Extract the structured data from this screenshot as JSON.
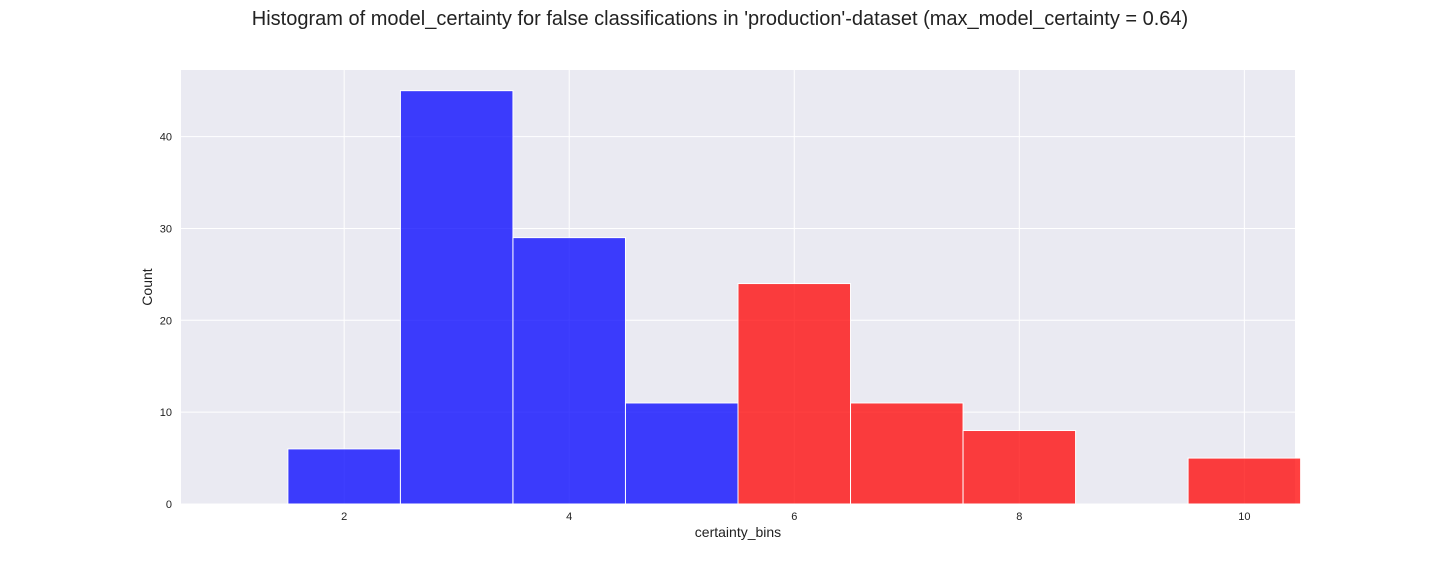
{
  "chart_data": {
    "type": "bar",
    "title": "Histogram of model_certainty for false classifications in 'production'-dataset (max_model_certainty = 0.64)",
    "xlabel": "certainty_bins",
    "ylabel": "Count",
    "x_ticks": [
      2,
      4,
      6,
      8,
      10
    ],
    "y_ticks": [
      0,
      10,
      20,
      30,
      40
    ],
    "xlim": [
      0.55,
      10.45
    ],
    "ylim": [
      0,
      47.25
    ],
    "grid": true,
    "bin_width": 1,
    "series": [
      {
        "color": "#0000ff",
        "bins": [
          {
            "center": 2,
            "count": 6
          },
          {
            "center": 3,
            "count": 45
          },
          {
            "center": 4,
            "count": 29
          },
          {
            "center": 5,
            "count": 11
          }
        ]
      },
      {
        "color": "#ff0000",
        "bins": [
          {
            "center": 6,
            "count": 24
          },
          {
            "center": 7,
            "count": 11
          },
          {
            "center": 8,
            "count": 8
          },
          {
            "center": 10,
            "count": 5
          }
        ]
      }
    ],
    "background_color": "#eaeaf2"
  }
}
